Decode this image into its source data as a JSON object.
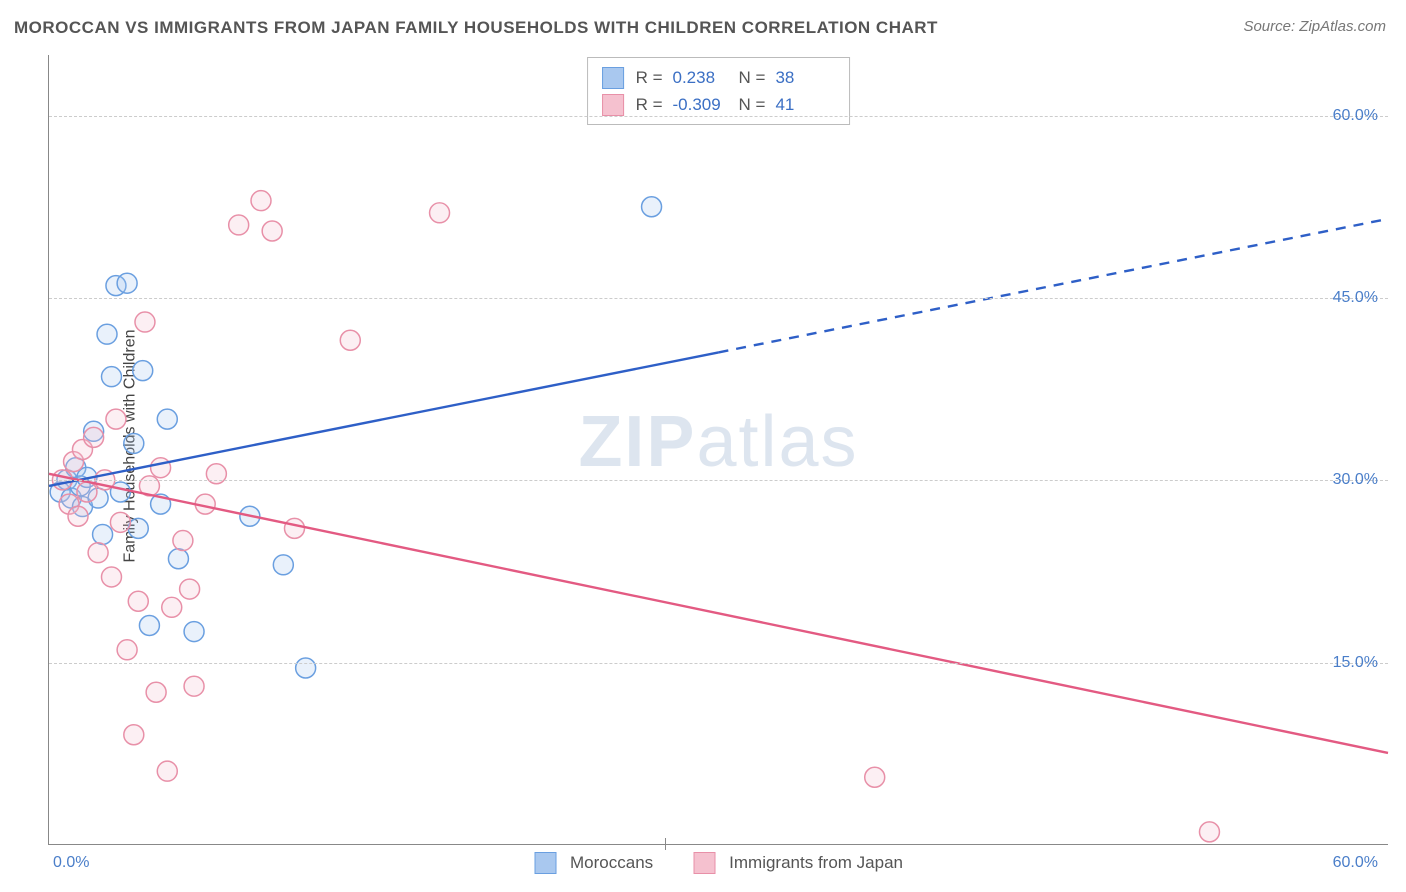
{
  "title": "MOROCCAN VS IMMIGRANTS FROM JAPAN FAMILY HOUSEHOLDS WITH CHILDREN CORRELATION CHART",
  "source": "Source: ZipAtlas.com",
  "ylabel": "Family Households with Children",
  "watermark_a": "ZIP",
  "watermark_b": "atlas",
  "chart": {
    "type": "scatter-correlation",
    "background_color": "#ffffff",
    "grid_color": "#cccccc",
    "axis_color": "#888888",
    "xlim": [
      0,
      60
    ],
    "ylim": [
      0,
      65
    ],
    "yticks": [
      {
        "value": 15.0,
        "label": "15.0%"
      },
      {
        "value": 30.0,
        "label": "30.0%"
      },
      {
        "value": 45.0,
        "label": "45.0%"
      },
      {
        "value": 60.0,
        "label": "60.0%"
      }
    ],
    "xtick_left": "0.0%",
    "xtick_right": "60.0%",
    "tick_fontsize": 16,
    "tick_color": "#4a7ec9",
    "label_fontsize": 16,
    "marker_radius": 10,
    "marker_stroke_width": 1.5,
    "marker_fill_opacity": 0.25,
    "line_width": 2.4,
    "series": [
      {
        "name": "Moroccans",
        "color_stroke": "#6a9fe0",
        "color_fill": "#a9c8ef",
        "line_color": "#2e5fc7",
        "R": "0.238",
        "N": "38",
        "trend": {
          "x1": 0,
          "y1": 29.5,
          "x2": 30,
          "y2": 40.5,
          "x_extend": 60,
          "y_extend": 51.5
        },
        "points": [
          [
            0.5,
            29
          ],
          [
            0.8,
            30
          ],
          [
            1.0,
            28.5
          ],
          [
            1.2,
            31
          ],
          [
            1.4,
            29.5
          ],
          [
            1.5,
            27.8
          ],
          [
            1.7,
            30.2
          ],
          [
            2.0,
            34
          ],
          [
            2.2,
            28.5
          ],
          [
            2.4,
            25.5
          ],
          [
            2.6,
            42
          ],
          [
            2.8,
            38.5
          ],
          [
            3.0,
            46
          ],
          [
            3.2,
            29
          ],
          [
            3.5,
            46.2
          ],
          [
            3.8,
            33
          ],
          [
            4.0,
            26
          ],
          [
            4.2,
            39
          ],
          [
            4.5,
            18
          ],
          [
            5.0,
            28
          ],
          [
            5.3,
            35
          ],
          [
            5.8,
            23.5
          ],
          [
            6.5,
            17.5
          ],
          [
            9.0,
            27
          ],
          [
            10.5,
            23
          ],
          [
            11.5,
            14.5
          ],
          [
            27,
            52.5
          ]
        ]
      },
      {
        "name": "Immigrants from Japan",
        "color_stroke": "#e890a8",
        "color_fill": "#f5c1cf",
        "line_color": "#e35a82",
        "R": "-0.309",
        "N": "41",
        "trend": {
          "x1": 0,
          "y1": 30.5,
          "x2": 60,
          "y2": 7.5,
          "x_extend": 60,
          "y_extend": 7.5
        },
        "points": [
          [
            0.6,
            30
          ],
          [
            0.9,
            28
          ],
          [
            1.1,
            31.5
          ],
          [
            1.3,
            27
          ],
          [
            1.5,
            32.5
          ],
          [
            1.7,
            29
          ],
          [
            2.0,
            33.5
          ],
          [
            2.2,
            24
          ],
          [
            2.5,
            30
          ],
          [
            2.8,
            22
          ],
          [
            3.0,
            35
          ],
          [
            3.2,
            26.5
          ],
          [
            3.5,
            16
          ],
          [
            3.8,
            9
          ],
          [
            4.0,
            20
          ],
          [
            4.3,
            43
          ],
          [
            4.5,
            29.5
          ],
          [
            4.8,
            12.5
          ],
          [
            5.0,
            31
          ],
          [
            5.3,
            6
          ],
          [
            5.5,
            19.5
          ],
          [
            6.0,
            25
          ],
          [
            6.3,
            21
          ],
          [
            6.5,
            13
          ],
          [
            7.0,
            28
          ],
          [
            7.5,
            30.5
          ],
          [
            8.5,
            51
          ],
          [
            9.5,
            53
          ],
          [
            10.0,
            50.5
          ],
          [
            11.0,
            26
          ],
          [
            13.5,
            41.5
          ],
          [
            17.5,
            52
          ],
          [
            37,
            5.5
          ],
          [
            52,
            1.0
          ]
        ]
      }
    ],
    "legend_bottom": [
      {
        "label": "Moroccans",
        "fill": "#a9c8ef",
        "stroke": "#6a9fe0"
      },
      {
        "label": "Immigrants from Japan",
        "fill": "#f5c1cf",
        "stroke": "#e890a8"
      }
    ]
  }
}
